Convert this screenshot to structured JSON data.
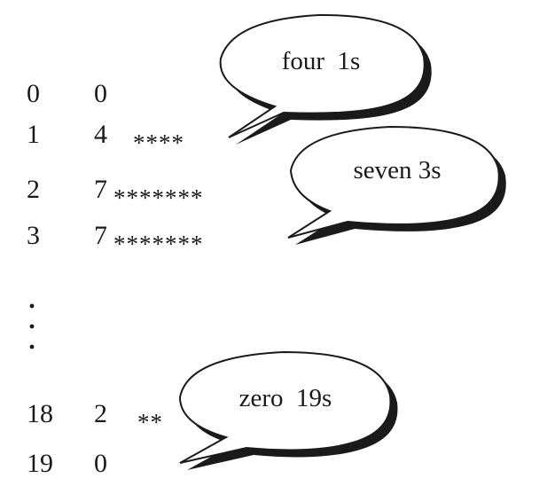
{
  "rows": [
    {
      "value": "0",
      "count": "0",
      "stars": ""
    },
    {
      "value": "1",
      "count": "4",
      "stars": "****"
    },
    {
      "value": "2",
      "count": "7",
      "stars": "*******"
    },
    {
      "value": "3",
      "count": "7",
      "stars": "*******"
    },
    {
      "value": "18",
      "count": "2",
      "stars": "**"
    },
    {
      "value": "19",
      "count": "0",
      "stars": ""
    }
  ],
  "bubbles": {
    "b1": "four  1s",
    "b2": "seven 3s",
    "b3": "zero  19s"
  }
}
